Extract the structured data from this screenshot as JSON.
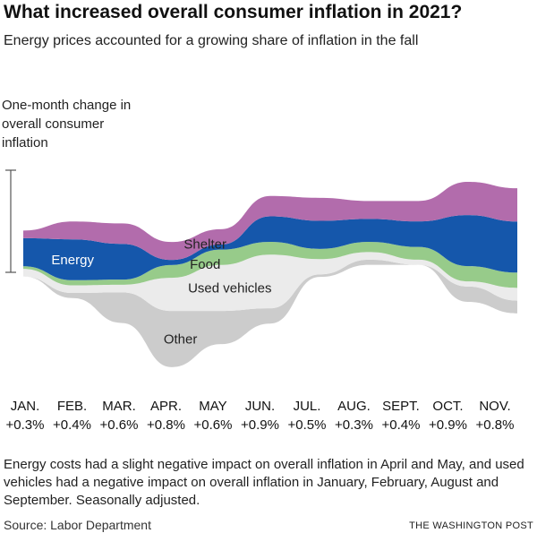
{
  "title": "What increased overall consumer inflation in 2021?",
  "subtitle": "Energy prices accounted for a growing share of inflation in the fall",
  "y_label": [
    "One-month change in",
    "overall consumer",
    "inflation"
  ],
  "note": "Energy costs had a slight negative impact on overall inflation in April and May, and used vehicles had a negative impact on overall inflation in January, February, August and September. Seasonally adjusted.",
  "source": "Source: Labor Department",
  "brand": "THE WASHINGTON POST",
  "chart_data": {
    "type": "area",
    "subtype": "streamgraph",
    "categories": [
      "JAN.",
      "FEB.",
      "MAR.",
      "APR.",
      "MAY",
      "JUN.",
      "JUL.",
      "AUG.",
      "SEPT.",
      "OCT.",
      "NOV."
    ],
    "totals": [
      "+0.3%",
      "+0.4%",
      "+0.6%",
      "+0.8%",
      "+0.6%",
      "+0.9%",
      "+0.5%",
      "+0.3%",
      "+0.4%",
      "+0.9%",
      "+0.8%"
    ],
    "series": [
      {
        "name": "Other",
        "color": "#cccccc",
        "values": [
          0.0,
          0.02,
          0.12,
          0.22,
          0.13,
          0.06,
          0.01,
          -0.02,
          0.0,
          0.06,
          0.05
        ]
      },
      {
        "name": "Used vehicles",
        "color": "#ebebeb",
        "values": [
          -0.03,
          -0.03,
          0.03,
          0.13,
          0.18,
          0.21,
          0.06,
          -0.03,
          -0.02,
          0.02,
          0.05
        ]
      },
      {
        "name": "Food",
        "color": "#97cb8a",
        "values": [
          0.01,
          0.02,
          0.02,
          0.05,
          0.06,
          0.05,
          0.04,
          0.04,
          0.05,
          0.06,
          0.06
        ]
      },
      {
        "name": "Energy",
        "color": "#1557ab",
        "values": [
          0.11,
          0.16,
          0.14,
          -0.02,
          -0.02,
          0.1,
          0.11,
          0.09,
          0.1,
          0.2,
          0.2
        ]
      },
      {
        "name": "Shelter",
        "color": "#b26cac",
        "values": [
          0.03,
          0.07,
          0.08,
          0.07,
          0.06,
          0.08,
          0.09,
          0.07,
          0.08,
          0.13,
          0.13
        ]
      }
    ],
    "scale_bar_value": "+0.4%"
  }
}
